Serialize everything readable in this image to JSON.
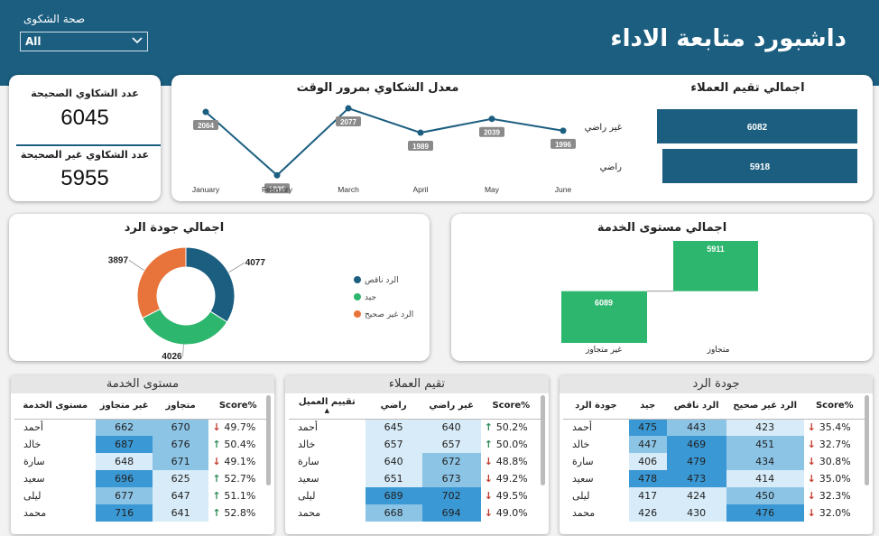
{
  "header": {
    "title": "داشبورد متابعة الاداء",
    "filter_label": "صحة الشكوى",
    "filter_value": "All"
  },
  "kpi": {
    "correct_label": "عدد الشكاوي الصحيحة",
    "correct_value": "6045",
    "incorrect_label": "عدد الشكاوي غير الصحيحة",
    "incorrect_value": "5955"
  },
  "colors": {
    "primary": "#1b5e80",
    "green": "#2db66d",
    "orange": "#e8743b",
    "heat_light": "#d7ebf8",
    "heat_mid": "#8cc4e6",
    "heat_dark": "#3a98d4"
  },
  "chart_data": [
    {
      "type": "line",
      "title": "معدل الشكاوي بمرور الوقت",
      "categories": [
        "January",
        "February",
        "March",
        "April",
        "May",
        "June"
      ],
      "values": [
        2064,
        1835,
        2077,
        1989,
        2039,
        1996
      ],
      "data_labels": [
        "2064",
        "1835",
        "2077",
        "1989",
        "2039",
        "1996"
      ],
      "ylim": [
        1800,
        2100
      ]
    },
    {
      "type": "bar",
      "orientation": "horizontal",
      "title": "اجمالي تقيم العملاء",
      "categories": [
        "غير راضي",
        "راضي"
      ],
      "values": [
        6082,
        5918
      ],
      "data_labels": [
        "6082",
        "5918"
      ]
    },
    {
      "type": "pie",
      "donut": true,
      "title": "اجمالي جودة الرد",
      "categories": [
        "الرد ناقص",
        "جيد",
        "الرد غير صحيح"
      ],
      "values": [
        4077,
        4026,
        3897
      ],
      "data_labels": [
        "4077",
        "4026",
        "3897"
      ],
      "legend_position": "right"
    },
    {
      "type": "bar",
      "subtype": "waterfall",
      "title": "اجمالي مستوى الخدمة",
      "categories": [
        "غير متجاوز",
        "متجاوز"
      ],
      "values": [
        6089,
        5911
      ],
      "data_labels": [
        "6089",
        "5911"
      ]
    }
  ],
  "tables": {
    "service": {
      "title": "مستوى الخدمة",
      "headers": [
        "مستوى الخدمة",
        "غير متجاوز",
        "متجاوز",
        "Score%"
      ],
      "rows": [
        {
          "name": "أحمد",
          "a": "662",
          "b": "670",
          "dir": "down",
          "score": "49.7%"
        },
        {
          "name": "خالد",
          "a": "687",
          "b": "676",
          "dir": "up",
          "score": "50.4%"
        },
        {
          "name": "سارة",
          "a": "648",
          "b": "671",
          "dir": "down",
          "score": "49.1%"
        },
        {
          "name": "سعيد",
          "a": "696",
          "b": "625",
          "dir": "up",
          "score": "52.7%"
        },
        {
          "name": "ليلى",
          "a": "677",
          "b": "647",
          "dir": "up",
          "score": "51.1%"
        },
        {
          "name": "محمد",
          "a": "716",
          "b": "641",
          "dir": "up",
          "score": "52.8%"
        }
      ]
    },
    "customers": {
      "title": "تقيم العملاء",
      "headers": [
        "تقييم العميل",
        "راضي",
        "غير راضي",
        "Score%"
      ],
      "rows": [
        {
          "name": "أحمد",
          "a": "645",
          "b": "640",
          "dir": "up",
          "score": "50.2%"
        },
        {
          "name": "خالد",
          "a": "657",
          "b": "657",
          "dir": "up",
          "score": "50.0%"
        },
        {
          "name": "سارة",
          "a": "640",
          "b": "672",
          "dir": "down",
          "score": "48.8%"
        },
        {
          "name": "سعيد",
          "a": "651",
          "b": "673",
          "dir": "down",
          "score": "49.2%"
        },
        {
          "name": "ليلى",
          "a": "689",
          "b": "702",
          "dir": "down",
          "score": "49.5%"
        },
        {
          "name": "محمد",
          "a": "668",
          "b": "694",
          "dir": "down",
          "score": "49.0%"
        }
      ]
    },
    "quality": {
      "title": "جودة الرد",
      "headers": [
        "جودة الرد",
        "جيد",
        "الرد ناقص",
        "الرد غير صحيح",
        "Score%"
      ],
      "rows": [
        {
          "name": "أحمد",
          "a": "475",
          "b": "443",
          "c": "423",
          "dir": "down",
          "score": "35.4%"
        },
        {
          "name": "خالد",
          "a": "447",
          "b": "469",
          "c": "451",
          "dir": "down",
          "score": "32.7%"
        },
        {
          "name": "سارة",
          "a": "406",
          "b": "479",
          "c": "434",
          "dir": "down",
          "score": "30.8%"
        },
        {
          "name": "سعيد",
          "a": "478",
          "b": "473",
          "c": "414",
          "dir": "down",
          "score": "35.0%"
        },
        {
          "name": "ليلى",
          "a": "417",
          "b": "424",
          "c": "450",
          "dir": "down",
          "score": "32.3%"
        },
        {
          "name": "محمد",
          "a": "426",
          "b": "430",
          "c": "476",
          "dir": "down",
          "score": "32.0%"
        }
      ]
    }
  }
}
